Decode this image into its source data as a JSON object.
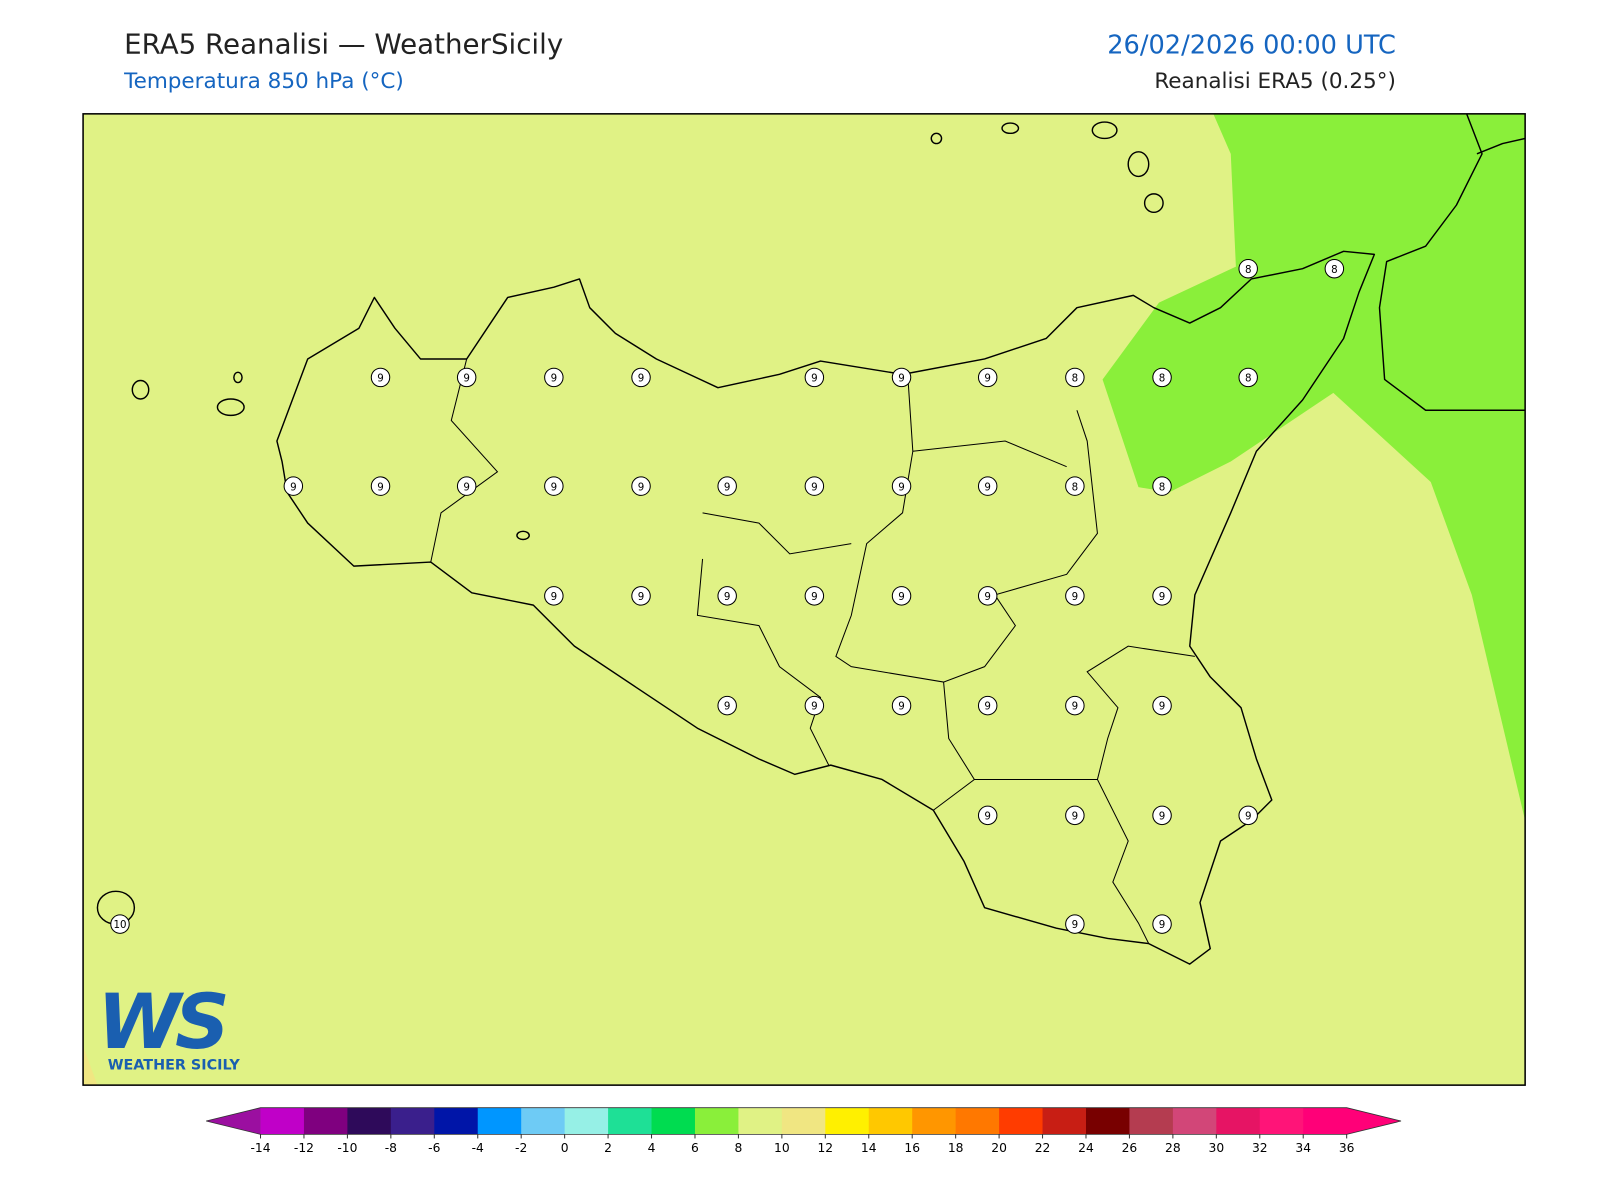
{
  "header": {
    "title": "ERA5 Reanalisi — WeatherSicily",
    "subtitle": "Temperatura 850 hPa (°C)",
    "datetime": "26/02/2026 00:00 UTC",
    "source": "Reanalisi ERA5 (0.25°)"
  },
  "stations": {
    "values": [
      9,
      9,
      9,
      9,
      9,
      9,
      9,
      8,
      8,
      8,
      8,
      8,
      9,
      9,
      9,
      9,
      9,
      9,
      9,
      9,
      9,
      8,
      8,
      9,
      9,
      9,
      9,
      9,
      9,
      9,
      9,
      9,
      9,
      9,
      9,
      9,
      9,
      9,
      9,
      9,
      9,
      10,
      9,
      9
    ]
  },
  "colorbar": {
    "ticks": [
      -14,
      -12,
      -10,
      -8,
      -6,
      -4,
      -2,
      0,
      2,
      4,
      6,
      8,
      10,
      12,
      14,
      16,
      18,
      20,
      22,
      24,
      26,
      28,
      30,
      32,
      34,
      36
    ],
    "colors": [
      "#c000c8",
      "#7f007f",
      "#2e0a5a",
      "#3a1f8c",
      "#0015a8",
      "#0096ff",
      "#6ecbf5",
      "#96f0e6",
      "#1ee096",
      "#00dc50",
      "#8aef3a",
      "#e0f285",
      "#f0e682",
      "#fff000",
      "#ffc800",
      "#ff9600",
      "#ff7800",
      "#ff3c00",
      "#c81e14",
      "#780000",
      "#b43c50",
      "#d24678",
      "#e61464",
      "#ff1478",
      "#ff0078"
    ],
    "under_color": "#9b0fa0",
    "over_color": "#ff0078"
  },
  "logo": {
    "mark": "WS",
    "text": "WEATHER SICILY"
  }
}
